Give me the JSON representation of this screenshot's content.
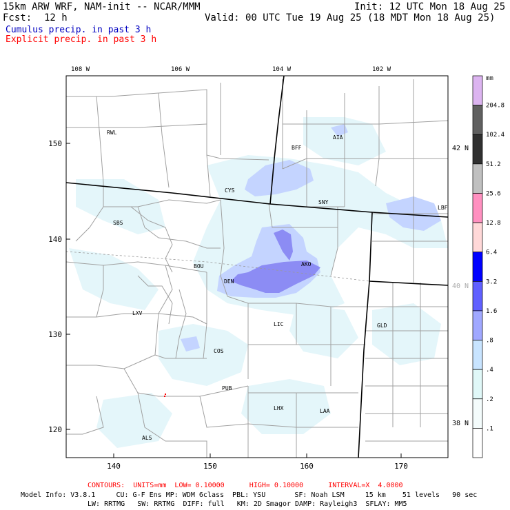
{
  "header": {
    "model_title": "15km ARW WRF, NAM-init -- NCAR/MMM",
    "init_time": "Init: 12 UTC Mon 18 Aug 25",
    "forecast_label": "Fcst:",
    "forecast_hour": "12 h",
    "valid_time": "Valid: 00 UTC Tue 19 Aug 25 (18 MDT Mon 18 Aug 25)",
    "cumulus_label": "Cumulus precip. in past 3 h",
    "explicit_label": "Explicit precip. in past 3 h"
  },
  "colors": {
    "cumulus": "#0000c0",
    "explicit": "#ff0000",
    "borders_state": "#000000",
    "borders_county": "#a0a0a0",
    "light_precip": "#e0f4fa",
    "medium_precip": "#c0d0ff",
    "heavy_precip": "#8080f0"
  },
  "map": {
    "top_lon_labels": [
      "108 W",
      "106 W",
      "104 W",
      "102 W"
    ],
    "right_lat_labels": [
      "42 N",
      "40 N",
      "38 N"
    ],
    "left_grid_labels": [
      "150",
      "140",
      "130",
      "120"
    ],
    "bottom_grid_labels": [
      "140",
      "150",
      "160",
      "170"
    ],
    "stations": [
      {
        "id": "RWL"
      },
      {
        "id": "BFF"
      },
      {
        "id": "AIA"
      },
      {
        "id": "CYS"
      },
      {
        "id": "SNY"
      },
      {
        "id": "LBF"
      },
      {
        "id": "SBS"
      },
      {
        "id": "BOU"
      },
      {
        "id": "AKO"
      },
      {
        "id": "DEN"
      },
      {
        "id": "LXV"
      },
      {
        "id": "LIC"
      },
      {
        "id": "GLD"
      },
      {
        "id": "COS"
      },
      {
        "id": "PUB"
      },
      {
        "id": "LHX"
      },
      {
        "id": "LAA"
      },
      {
        "id": "ALS"
      }
    ]
  },
  "legend": {
    "unit": "mm",
    "bins": [
      {
        "label": "204.8",
        "color": "#dcb4f0"
      },
      {
        "label": "102.4",
        "color": "#606060"
      },
      {
        "label": "51.2",
        "color": "#303030"
      },
      {
        "label": "25.6",
        "color": "#c0c0c0"
      },
      {
        "label": "12.8",
        "color": "#ff90c0"
      },
      {
        "label": "6.4",
        "color": "#ffd8d8"
      },
      {
        "label": "3.2",
        "color": "#0000ff"
      },
      {
        "label": "1.6",
        "color": "#6060ff"
      },
      {
        "label": ".8",
        "color": "#a0a8ff"
      },
      {
        "label": ".4",
        "color": "#c8e4ff"
      },
      {
        "label": ".2",
        "color": "#e0f8f8"
      },
      {
        "label": ".1",
        "color": "#f4fcfc"
      },
      {
        "label": "",
        "color": "#ffffff"
      }
    ]
  },
  "footer": {
    "contours_line": "CONTOURS:  UNITS=mm  LOW= 0.10000      HIGH= 0.10000      INTERVAL=X  4.0000",
    "model_info_line1": "Model Info: V3.8.1     CU: G-F Ens MP: WDM 6class  PBL: YSU       SF: Noah LSM     15 km    51 levels   90 sec",
    "model_info_line2": "LW: RRTMG   SW: RRTMG  DIFF: full   KM: 2D Smagor DAMP: Rayleigh3  SFLAY: MM5"
  }
}
